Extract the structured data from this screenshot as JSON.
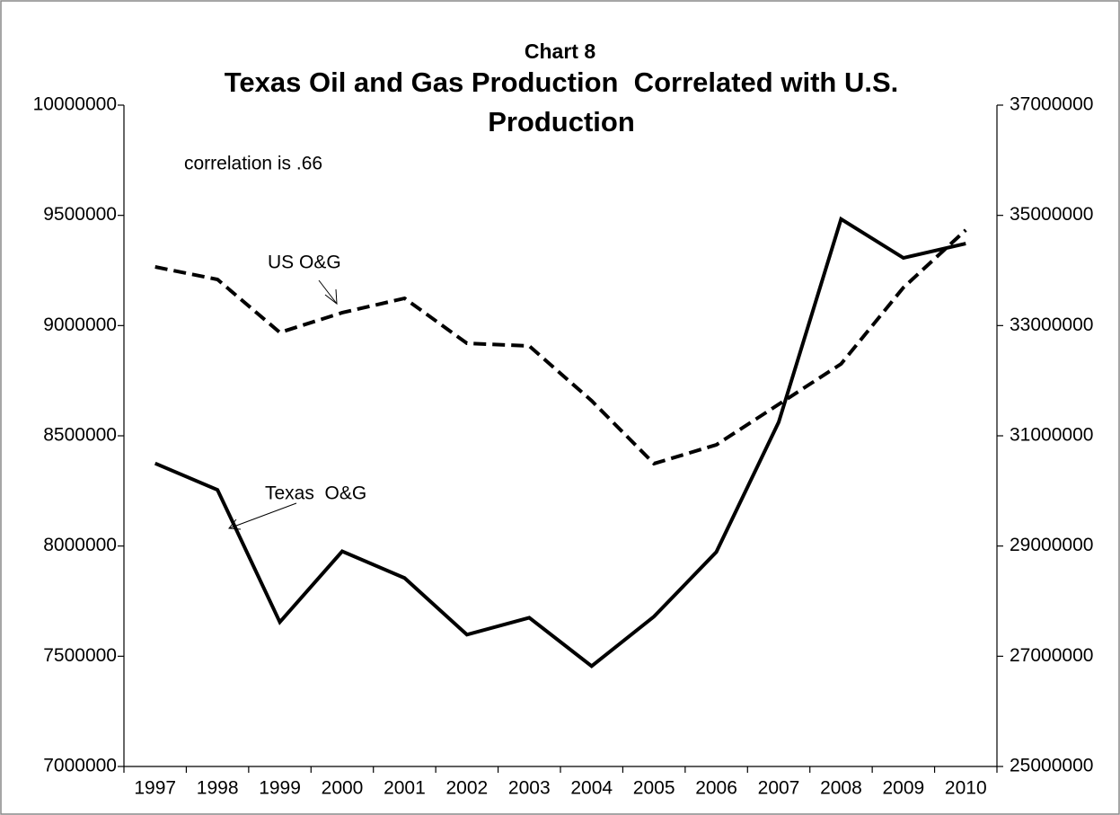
{
  "chart_data": {
    "type": "line",
    "subtitle": "Chart 8",
    "title": "Texas Oil and Gas Production  Correlated with U.S. Production",
    "annotations": [
      "correlation is .66"
    ],
    "categories": [
      "1997",
      "1998",
      "1999",
      "2000",
      "2001",
      "2002",
      "2003",
      "2004",
      "2005",
      "2006",
      "2007",
      "2008",
      "2009",
      "2010"
    ],
    "series": [
      {
        "name": "Texas  O&G",
        "color": "#000000",
        "dashed": false,
        "values": [
          8375000,
          8255000,
          7655000,
          7976000,
          7855000,
          7598000,
          7675000,
          7455000,
          7680000,
          7973000,
          8562000,
          9483000,
          9307000,
          9372000
        ]
      },
      {
        "name": "US O&G",
        "color": "#000000",
        "dashed": true,
        "axis": "y2",
        "values": [
          34065000,
          33837000,
          32875000,
          33234000,
          33495000,
          32679000,
          32630000,
          31636000,
          30495000,
          30837000,
          31571000,
          32304000,
          33690000,
          34734000
        ]
      }
    ],
    "ylim": [
      7000000,
      10000000
    ],
    "yticks": [
      7000000,
      7500000,
      8000000,
      8500000,
      9000000,
      9500000,
      10000000
    ],
    "y2lim": [
      25000000,
      37000000
    ],
    "y2ticks": [
      25000000,
      27000000,
      29000000,
      31000000,
      33000000,
      35000000,
      37000000
    ],
    "grid": false
  }
}
